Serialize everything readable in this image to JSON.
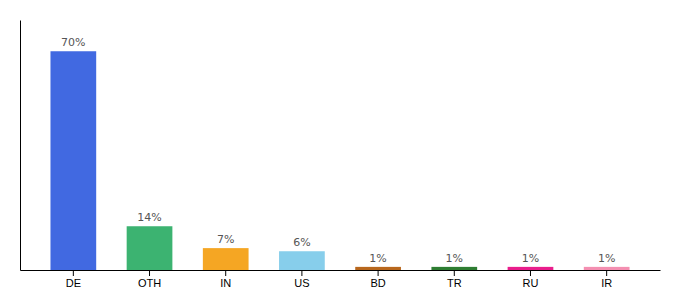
{
  "chart_data": {
    "type": "bar",
    "categories": [
      "DE",
      "OTH",
      "IN",
      "US",
      "BD",
      "TR",
      "RU",
      "IR"
    ],
    "values": [
      70,
      14,
      7,
      6,
      1,
      1,
      1,
      1
    ],
    "value_labels": [
      "70%",
      "14%",
      "7%",
      "6%",
      "1%",
      "1%",
      "1%",
      "1%"
    ],
    "colors": [
      "#4169e1",
      "#3cb371",
      "#f5a623",
      "#87ceeb",
      "#b8671d",
      "#2e7d32",
      "#e91e8c",
      "#f48fb1"
    ],
    "ylim": [
      0,
      80
    ],
    "data_labels": true,
    "tick_labels": "x"
  }
}
